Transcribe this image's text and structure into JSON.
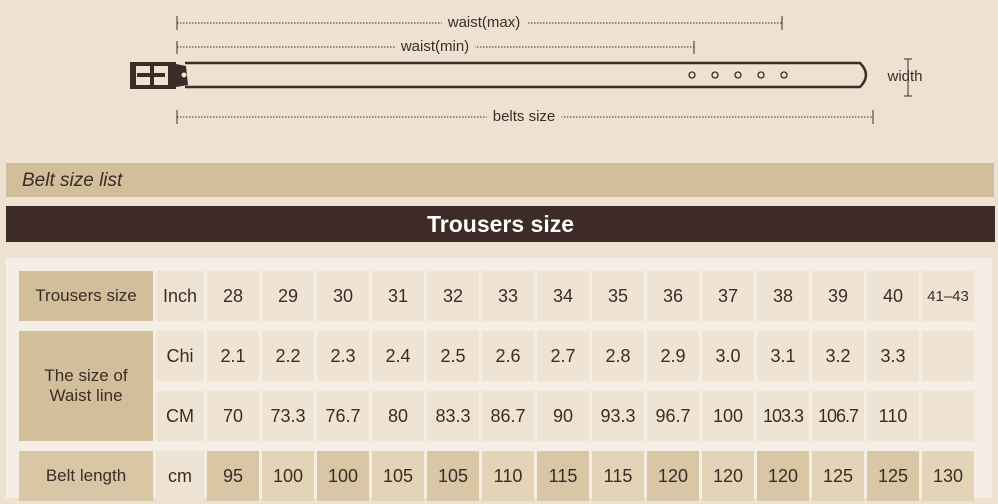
{
  "diagram": {
    "waist_max_label": "waist(max)",
    "waist_min_label": "waist(min)",
    "belts_size_label": "belts size",
    "width_label": "width"
  },
  "list_title": "Belt size list",
  "table_title": "Trousers size",
  "table": {
    "trousers_size": {
      "label": "Trousers size",
      "unit": "Inch",
      "values": [
        "28",
        "29",
        "30",
        "31",
        "32",
        "33",
        "34",
        "35",
        "36",
        "37",
        "38",
        "39",
        "40",
        "41–43"
      ]
    },
    "waist_label_line1": "The size of",
    "waist_label_line2": "Waist line",
    "waist_chi": {
      "unit": "Chi",
      "values": [
        "2.1",
        "2.2",
        "2.3",
        "2.4",
        "2.5",
        "2.6",
        "2.7",
        "2.8",
        "2.9",
        "3.0",
        "3.1",
        "3.2",
        "3.3",
        ""
      ]
    },
    "waist_cm": {
      "unit": "CM",
      "values": [
        "70",
        "73.3",
        "76.7",
        "80",
        "83.3",
        "86.7",
        "90",
        "93.3",
        "96.7",
        "100",
        "103.3",
        "106.7",
        "110",
        ""
      ]
    },
    "belt_length": {
      "label": "Belt length",
      "unit": "cm",
      "values": [
        "95",
        "100",
        "100",
        "105",
        "105",
        "110",
        "115",
        "115",
        "120",
        "120",
        "120",
        "125",
        "125",
        "130"
      ]
    }
  },
  "colors": {
    "dark_brown": "#3e2a27",
    "tan": "#d3be9b",
    "background": "#ede2d1"
  }
}
